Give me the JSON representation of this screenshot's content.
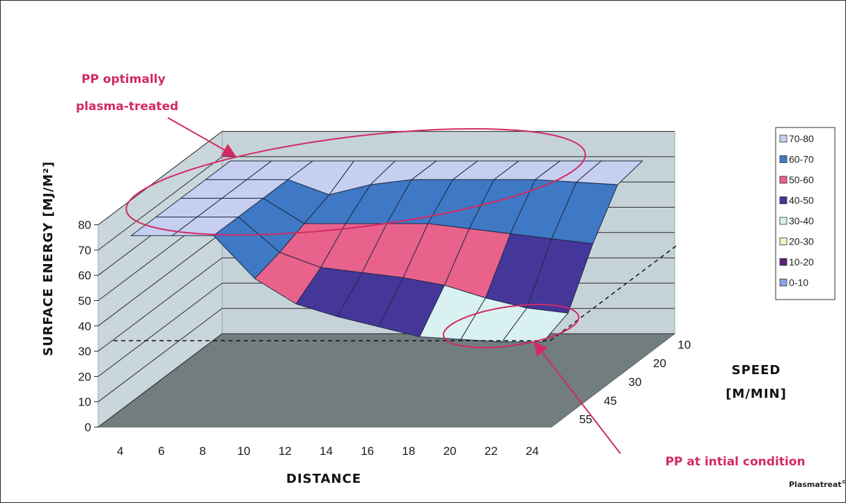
{
  "chart_data": {
    "type": "surface",
    "xlabel": "DISTANCE",
    "ylabel": "SURFACE ENERGY [MJ/M²]",
    "zlabel_line1": "SPEED",
    "zlabel_line2": "[M/MIN]",
    "x_categories": [
      "4",
      "6",
      "8",
      "10",
      "12",
      "14",
      "16",
      "18",
      "20",
      "22",
      "24"
    ],
    "speed_categories": [
      "10",
      "20",
      "30",
      "45",
      "55"
    ],
    "y_ticks": [
      "0",
      "10",
      "20",
      "30",
      "40",
      "50",
      "60",
      "70",
      "80"
    ],
    "ylim": [
      0,
      80
    ],
    "series": [
      {
        "name": "70-80",
        "color": "#c6cff0"
      },
      {
        "name": "60-70",
        "color": "#3f78c4"
      },
      {
        "name": "50-60",
        "color": "#e8628c"
      },
      {
        "name": "40-50",
        "color": "#45369a"
      },
      {
        "name": "30-40",
        "color": "#d9f1f1"
      },
      {
        "name": "20-30",
        "color": "#f3f3c8"
      },
      {
        "name": "10-20",
        "color": "#5a1f7a"
      },
      {
        "name": "0-10",
        "color": "#8aa3e6"
      }
    ],
    "surface_values": [
      [
        72,
        72,
        72,
        72,
        72,
        72,
        72,
        72,
        72,
        72,
        72
      ],
      [
        72,
        72,
        72,
        66,
        70,
        72,
        72,
        72,
        72,
        71,
        70
      ],
      [
        72,
        72,
        72,
        62,
        62,
        62,
        62,
        60,
        58,
        56,
        54
      ],
      [
        72,
        72,
        72,
        58,
        52,
        50,
        48,
        45,
        40,
        36,
        34
      ],
      [
        72,
        72,
        72,
        55,
        45,
        40,
        36,
        32,
        31,
        30,
        30
      ]
    ],
    "legend_position": "right",
    "annotations": [
      {
        "text_line1": "PP optimally",
        "text_line2": "plasma-treated"
      },
      {
        "text": "PP at intial condition"
      }
    ],
    "reference_line_y": 30,
    "grid": true
  },
  "credit": {
    "text": "Plasmatreat",
    "symbol": "©"
  }
}
